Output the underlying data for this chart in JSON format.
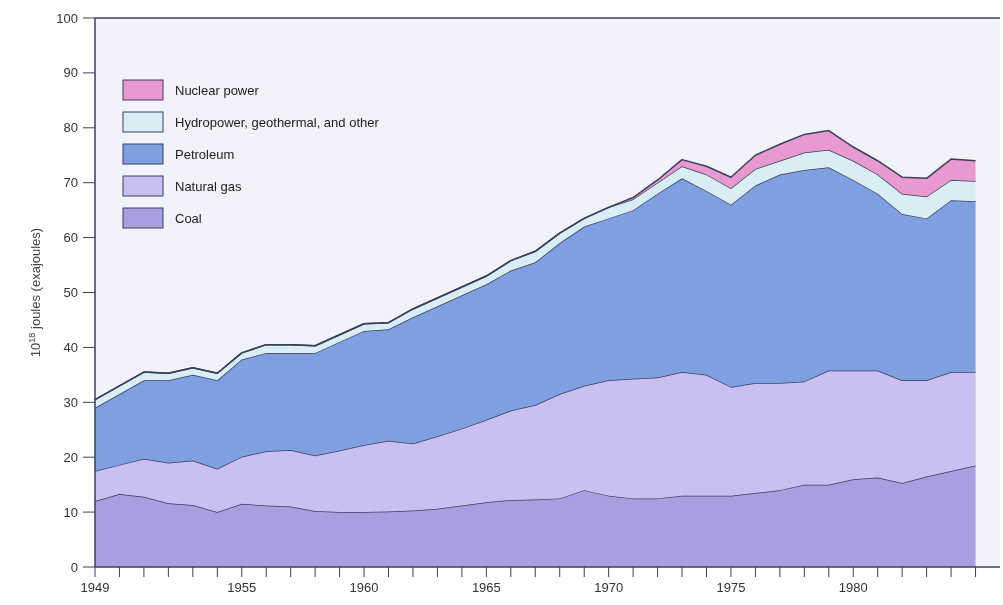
{
  "chart_data": {
    "type": "area",
    "stacked": true,
    "ylabel": "10$^{18}$ joules (exajoules)",
    "x": [
      1949,
      1950,
      1951,
      1952,
      1953,
      1954,
      1955,
      1956,
      1957,
      1958,
      1959,
      1960,
      1961,
      1962,
      1963,
      1964,
      1965,
      1966,
      1967,
      1968,
      1969,
      1970,
      1971,
      1972,
      1973,
      1974,
      1975,
      1976,
      1977,
      1978,
      1979,
      1980,
      1981,
      1982,
      1983,
      1984,
      1985
    ],
    "xlim": [
      1949,
      1986
    ],
    "xticks": [
      1949,
      {
        "value": 1950,
        "label": null
      },
      {
        "value": 1951,
        "label": null
      },
      {
        "value": 1952,
        "label": null
      },
      {
        "value": 1953,
        "label": null
      },
      {
        "value": 1954,
        "label": null
      },
      1955,
      {
        "value": 1956,
        "label": null
      },
      {
        "value": 1957,
        "label": null
      },
      {
        "value": 1958,
        "label": null
      },
      {
        "value": 1959,
        "label": null
      },
      1960,
      {
        "value": 1961,
        "label": null
      },
      {
        "value": 1962,
        "label": null
      },
      {
        "value": 1963,
        "label": null
      },
      {
        "value": 1964,
        "label": null
      },
      1965,
      {
        "value": 1966,
        "label": null
      },
      {
        "value": 1967,
        "label": null
      },
      {
        "value": 1968,
        "label": null
      },
      {
        "value": 1969,
        "label": null
      },
      1970,
      {
        "value": 1971,
        "label": null
      },
      {
        "value": 1972,
        "label": null
      },
      {
        "value": 1973,
        "label": null
      },
      {
        "value": 1974,
        "label": null
      },
      1975,
      {
        "value": 1976,
        "label": null
      },
      {
        "value": 1977,
        "label": null
      },
      {
        "value": 1978,
        "label": null
      },
      {
        "value": 1979,
        "label": null
      },
      1980,
      {
        "value": 1981,
        "label": null
      },
      {
        "value": 1982,
        "label": null
      },
      {
        "value": 1983,
        "label": null
      },
      {
        "value": 1984,
        "label": null
      },
      {
        "value": 1985,
        "label": null
      }
    ],
    "ylim": [
      0,
      100
    ],
    "yticks": [
      0,
      10,
      20,
      30,
      40,
      50,
      60,
      70,
      80,
      90,
      100
    ],
    "grid": false,
    "legend": "top left",
    "series": [
      {
        "name": "Coal",
        "color": "#a99ee0",
        "values": [
          12,
          13.3,
          12.8,
          11.6,
          11.3,
          10,
          11.5,
          11.2,
          11,
          10.2,
          10,
          10,
          10.1,
          10.3,
          10.6,
          11.2,
          11.8,
          12.2,
          12.3,
          12.5,
          14,
          13,
          12.5,
          12.5,
          13,
          13,
          13,
          13.5,
          14,
          15,
          15,
          16,
          16.3,
          15.3,
          16.5,
          17.5,
          18.5
        ]
      },
      {
        "name": "Natural gas",
        "color": "#c9bff0",
        "values": [
          5.5,
          5.3,
          6.9,
          7.4,
          8.1,
          7.9,
          8.6,
          9.9,
          10.3,
          10.1,
          11.2,
          12.2,
          12.9,
          12.2,
          13.2,
          14,
          15,
          16.3,
          17.2,
          19,
          19,
          21,
          21.8,
          22,
          22.5,
          22,
          19.8,
          20,
          19.5,
          18.8,
          20.8,
          19.8,
          19.5,
          18.7,
          17.5,
          18,
          17
        ]
      },
      {
        "name": "Petroleum",
        "color": "#7ea0e0",
        "values": [
          11.5,
          12.9,
          14.3,
          15,
          15.6,
          16.1,
          17.7,
          17.9,
          17.7,
          18.7,
          19.8,
          20.8,
          20.3,
          23,
          23.7,
          24.3,
          24.7,
          25.5,
          26,
          27.5,
          29,
          29.5,
          30.7,
          33.5,
          35.3,
          33.5,
          33.2,
          36,
          38,
          38.5,
          37,
          34.7,
          32.2,
          30.3,
          29.5,
          31.3,
          31.1
        ]
      },
      {
        "name": "Hydropower, geothermal, and other",
        "color": "#d8eef4",
        "values": [
          1.5,
          1.5,
          1.5,
          1.3,
          1.3,
          1.3,
          1.2,
          1.5,
          1.5,
          1.3,
          1.3,
          1.3,
          1.2,
          1.5,
          1.5,
          1.5,
          1.5,
          1.8,
          2,
          1.8,
          1.5,
          2,
          2,
          2,
          2.2,
          3,
          3,
          3,
          2.5,
          3.2,
          3.2,
          3.5,
          3.5,
          3.7,
          4,
          3.7,
          3.7
        ]
      },
      {
        "name": "Nuclear power",
        "color": "#e89ad0",
        "values": [
          0,
          0,
          0,
          0,
          0,
          0,
          0,
          0,
          0,
          0,
          0,
          0,
          0,
          0,
          0,
          0,
          0,
          0,
          0,
          0,
          0,
          0,
          0.3,
          0.5,
          1.2,
          1.5,
          2,
          2.5,
          3,
          3.3,
          3.5,
          2.5,
          2.5,
          3,
          3.3,
          3.8,
          3.7
        ]
      }
    ]
  }
}
